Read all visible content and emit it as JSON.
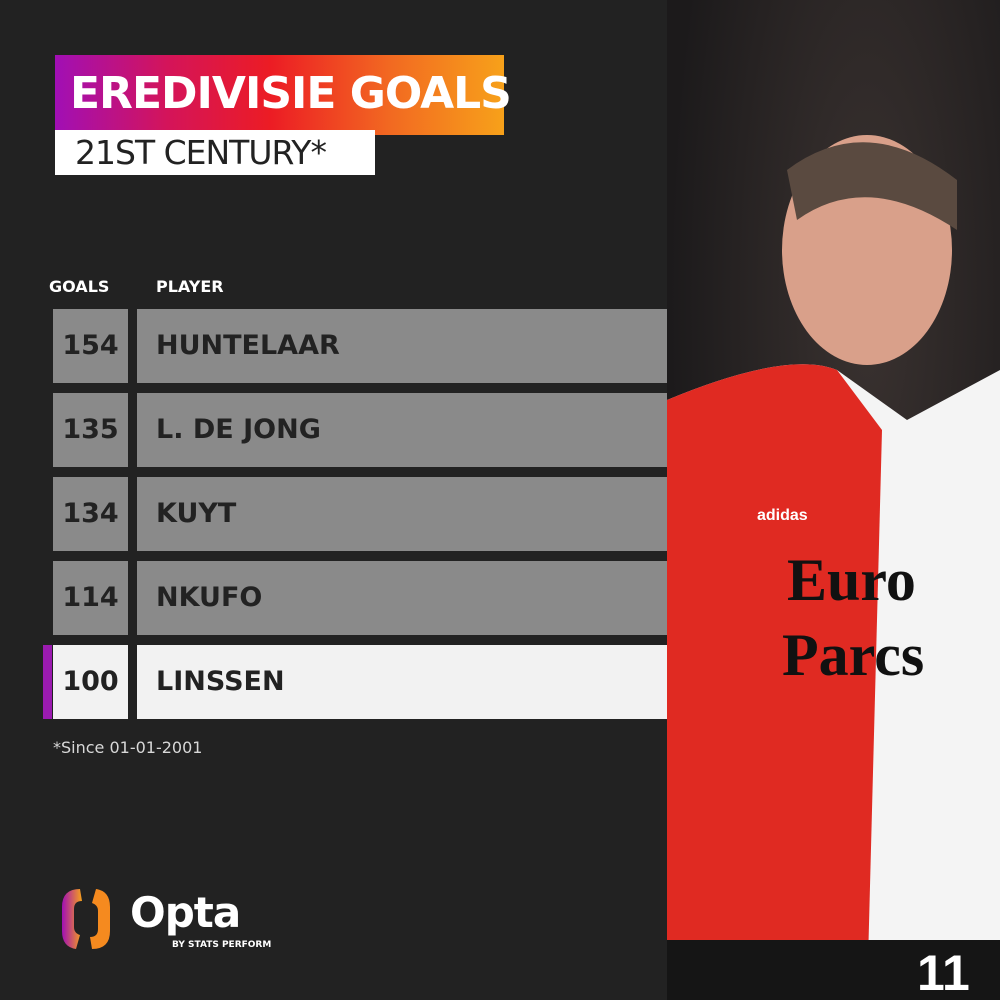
{
  "header": {
    "title": "EREDIVISIE GOALS",
    "subtitle": "21ST CENTURY*"
  },
  "table": {
    "columns": [
      "GOALS",
      "PLAYER"
    ],
    "rows": [
      {
        "goals": "154",
        "player": "HUNTELAAR",
        "highlighted": false
      },
      {
        "goals": "135",
        "player": "L. DE JONG",
        "highlighted": false
      },
      {
        "goals": "134",
        "player": "KUYT",
        "highlighted": false
      },
      {
        "goals": "114",
        "player": "NKUFO",
        "highlighted": false
      },
      {
        "goals": "100",
        "player": "LINSSEN",
        "highlighted": true
      }
    ]
  },
  "footnote": "*Since 01-01-2001",
  "logo": {
    "name": "Opta",
    "tagline": "BY STATS PERFORM"
  },
  "photo": {
    "jersey_text": "Euro Parcs",
    "brand": "adidas",
    "number": "11"
  },
  "colors": {
    "background": "#222222",
    "row": "#8a8a8a",
    "highlight_row": "#f2f2f2",
    "highlight_bar": "#9b1bb0",
    "gradient_start": "#a10fb5",
    "gradient_mid": "#ec1c24",
    "gradient_end": "#f7a11a"
  }
}
